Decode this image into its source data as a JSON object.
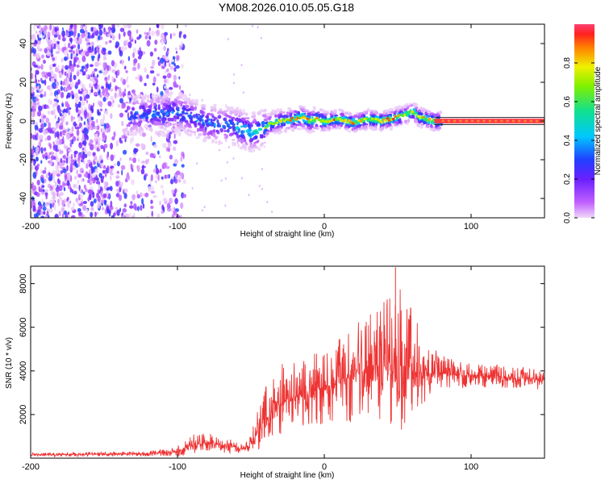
{
  "title": "YM08.2026.010.05.05.G18",
  "chart_data": [
    {
      "type": "heatmap",
      "name": "spectrogram",
      "xlabel": "Height of straight line (km)",
      "ylabel": "Frequency (Hz)",
      "xlim": [
        -200,
        150
      ],
      "ylim": [
        -50,
        50
      ],
      "xticks": [
        -200,
        -100,
        0,
        100
      ],
      "yticks": [
        -40,
        -20,
        0,
        20,
        40
      ],
      "colorbar": {
        "label": "Normalized spectral amplitude",
        "range": [
          0,
          1
        ],
        "ticks": [
          0.0,
          0.2,
          0.4,
          0.6,
          0.8
        ]
      },
      "ridge": {
        "x": [
          -130,
          -110,
          -100,
          -90,
          -80,
          -70,
          -60,
          -50,
          -45,
          -40,
          -35,
          -30,
          -20,
          -15,
          -10,
          -5,
          0,
          10,
          20,
          30,
          40,
          50,
          55,
          60,
          65,
          70,
          75,
          80,
          100,
          120,
          150
        ],
        "freq": [
          3,
          4,
          5,
          2,
          -1,
          -2,
          -3,
          -6,
          -5,
          -3,
          -1,
          0,
          1,
          2,
          0,
          1,
          0,
          1,
          -1,
          1,
          0,
          2,
          3,
          5,
          2,
          1,
          0,
          0,
          0,
          0,
          0
        ]
      }
    },
    {
      "type": "line",
      "name": "snr",
      "xlabel": "Height of straight line (km)",
      "ylabel": "SNR (10 * v/v)",
      "xlim": [
        -200,
        150
      ],
      "ylim": [
        0,
        8800
      ],
      "xticks": [
        -200,
        -100,
        0,
        100
      ],
      "yticks": [
        2000,
        4000,
        6000,
        8000
      ],
      "color": "#ee3333",
      "envelope": {
        "x": [
          -200,
          -120,
          -100,
          -90,
          -80,
          -70,
          -60,
          -55,
          -50,
          -45,
          -40,
          -30,
          -25,
          -20,
          -10,
          0,
          10,
          20,
          30,
          40,
          45,
          50,
          55,
          60,
          70,
          80,
          90,
          100,
          120,
          150
        ],
        "mean": [
          150,
          200,
          300,
          600,
          700,
          600,
          500,
          400,
          600,
          1200,
          1800,
          2500,
          2700,
          2800,
          3000,
          3200,
          3500,
          3800,
          4200,
          4300,
          4400,
          4400,
          4200,
          4000,
          3900,
          3900,
          3800,
          3800,
          3700,
          3600
        ],
        "spread": [
          100,
          120,
          250,
          500,
          450,
          400,
          300,
          200,
          500,
          1200,
          1500,
          1800,
          1800,
          1700,
          1800,
          1900,
          2100,
          2400,
          2700,
          3100,
          3400,
          3500,
          3300,
          2800,
          1500,
          800,
          700,
          600,
          550,
          500
        ]
      }
    }
  ]
}
